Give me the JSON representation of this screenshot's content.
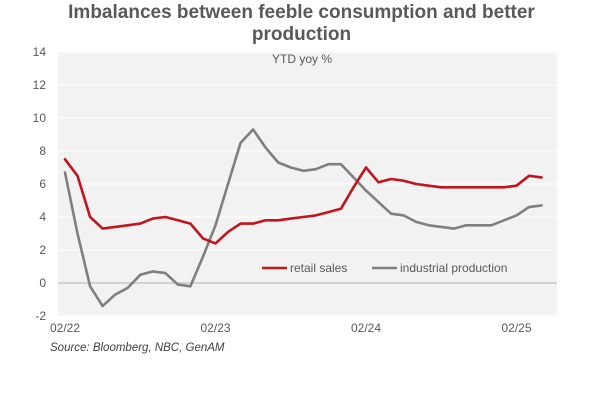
{
  "title_lines": [
    "Imbalances between feeble consumption and better",
    "production"
  ],
  "source": "Source: Bloomberg, NBC, GenAM",
  "colors": {
    "retail": "#C0161D",
    "industrial": "#7F7F7F",
    "plot_bg": "#F2F2F2",
    "grid": "#FFFFFF",
    "zero": "#BFBFBF"
  },
  "chart_data": {
    "type": "line",
    "title": "Imbalances between feeble consumption and better production",
    "subtitle": "YTD yoy %",
    "ylim": [
      -2,
      14
    ],
    "yticks": [
      -2,
      0,
      2,
      4,
      6,
      8,
      10,
      12,
      14
    ],
    "xlim": [
      "2022-02",
      "2025-06"
    ],
    "xticks": [
      {
        "x": "2022-02",
        "label": "02/22"
      },
      {
        "x": "2023-02",
        "label": "02/23"
      },
      {
        "x": "2024-02",
        "label": "02/24"
      },
      {
        "x": "2025-02",
        "label": "02/25"
      }
    ],
    "grid": true,
    "legend": "center-right, inside plot",
    "series": [
      {
        "name": "retail sales",
        "color": "#C0161D",
        "points": [
          [
            "2022-02",
            7.5
          ],
          [
            "2022-03",
            6.5
          ],
          [
            "2022-04",
            4.0
          ],
          [
            "2022-05",
            3.3
          ],
          [
            "2022-06",
            3.4
          ],
          [
            "2022-07",
            3.5
          ],
          [
            "2022-08",
            3.6
          ],
          [
            "2022-09",
            3.9
          ],
          [
            "2022-10",
            4.0
          ],
          [
            "2022-11",
            3.8
          ],
          [
            "2022-12",
            3.6
          ],
          [
            "2023-01",
            2.7
          ],
          [
            "2023-02",
            2.4
          ],
          [
            "2023-03",
            3.1
          ],
          [
            "2023-04",
            3.6
          ],
          [
            "2023-05",
            3.6
          ],
          [
            "2023-06",
            3.8
          ],
          [
            "2023-07",
            3.8
          ],
          [
            "2023-08",
            3.9
          ],
          [
            "2023-09",
            4.0
          ],
          [
            "2023-10",
            4.1
          ],
          [
            "2023-11",
            4.3
          ],
          [
            "2023-12",
            4.5
          ],
          [
            "2024-01",
            5.8
          ],
          [
            "2024-02",
            7.0
          ],
          [
            "2024-03",
            6.1
          ],
          [
            "2024-04",
            6.3
          ],
          [
            "2024-05",
            6.2
          ],
          [
            "2024-06",
            6.0
          ],
          [
            "2024-07",
            5.9
          ],
          [
            "2024-08",
            5.8
          ],
          [
            "2024-09",
            5.8
          ],
          [
            "2024-10",
            5.8
          ],
          [
            "2024-11",
            5.8
          ],
          [
            "2024-12",
            5.8
          ],
          [
            "2025-01",
            5.8
          ],
          [
            "2025-02",
            5.9
          ],
          [
            "2025-03",
            6.5
          ],
          [
            "2025-04",
            6.4
          ]
        ]
      },
      {
        "name": "industrial production",
        "color": "#7F7F7F",
        "points": [
          [
            "2022-02",
            6.7
          ],
          [
            "2022-03",
            3.0
          ],
          [
            "2022-04",
            -0.2
          ],
          [
            "2022-05",
            -1.4
          ],
          [
            "2022-06",
            -0.7
          ],
          [
            "2022-07",
            -0.3
          ],
          [
            "2022-08",
            0.5
          ],
          [
            "2022-09",
            0.7
          ],
          [
            "2022-10",
            0.6
          ],
          [
            "2022-11",
            -0.1
          ],
          [
            "2022-12",
            -0.2
          ],
          [
            "2023-01",
            1.6
          ],
          [
            "2023-02",
            3.5
          ],
          [
            "2023-03",
            6.0
          ],
          [
            "2023-04",
            8.5
          ],
          [
            "2023-05",
            9.3
          ],
          [
            "2023-06",
            8.2
          ],
          [
            "2023-07",
            7.3
          ],
          [
            "2023-08",
            7.0
          ],
          [
            "2023-09",
            6.8
          ],
          [
            "2023-10",
            6.9
          ],
          [
            "2023-11",
            7.2
          ],
          [
            "2023-12",
            7.2
          ],
          [
            "2024-01",
            6.4
          ],
          [
            "2024-02",
            5.6
          ],
          [
            "2024-03",
            4.9
          ],
          [
            "2024-04",
            4.2
          ],
          [
            "2024-05",
            4.1
          ],
          [
            "2024-06",
            3.7
          ],
          [
            "2024-07",
            3.5
          ],
          [
            "2024-08",
            3.4
          ],
          [
            "2024-09",
            3.3
          ],
          [
            "2024-10",
            3.5
          ],
          [
            "2024-11",
            3.5
          ],
          [
            "2024-12",
            3.5
          ],
          [
            "2025-01",
            3.8
          ],
          [
            "2025-02",
            4.1
          ],
          [
            "2025-03",
            4.6
          ],
          [
            "2025-04",
            4.7
          ]
        ]
      }
    ]
  }
}
